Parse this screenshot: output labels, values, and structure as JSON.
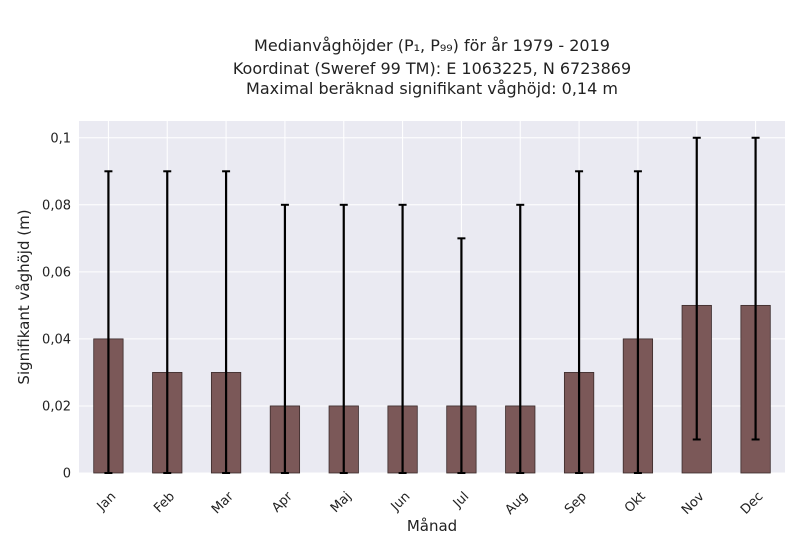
{
  "chart_data": {
    "type": "bar",
    "title_lines": [
      "Medianvåghöjder (P₁, P₉₉) för år 1979 - 2019",
      "Koordinat (Sweref 99 TM): E 1063225, N 6723869",
      "Maximal beräknad signifikant våghöjd: 0,14 m"
    ],
    "xlabel": "Månad",
    "ylabel": "Signifikant våghöjd (m)",
    "categories": [
      "Jan",
      "Feb",
      "Mar",
      "Apr",
      "Maj",
      "Jun",
      "Jul",
      "Aug",
      "Sep",
      "Okt",
      "Nov",
      "Dec"
    ],
    "values": [
      0.04,
      0.03,
      0.03,
      0.02,
      0.02,
      0.02,
      0.02,
      0.02,
      0.03,
      0.04,
      0.05,
      0.05
    ],
    "error_low": [
      0,
      0,
      0,
      0,
      0,
      0,
      0,
      0,
      0,
      0,
      0.01,
      0.01
    ],
    "error_high": [
      0.09,
      0.09,
      0.09,
      0.08,
      0.08,
      0.08,
      0.07,
      0.08,
      0.09,
      0.09,
      0.1,
      0.1
    ],
    "ylim": [
      0,
      0.105
    ],
    "yticks": [
      0,
      0.02,
      0.04,
      0.06,
      0.08,
      0.1
    ],
    "ytick_labels": [
      "0",
      "0,02",
      "0,04",
      "0,06",
      "0,08",
      "0,1"
    ],
    "grid": true,
    "colors": {
      "bar_fill": "#7b5858",
      "bar_edge": "#3a2a2a",
      "error_bar": "#000000",
      "plot_background": "#eaeaf2",
      "grid": "#ffffff"
    }
  }
}
